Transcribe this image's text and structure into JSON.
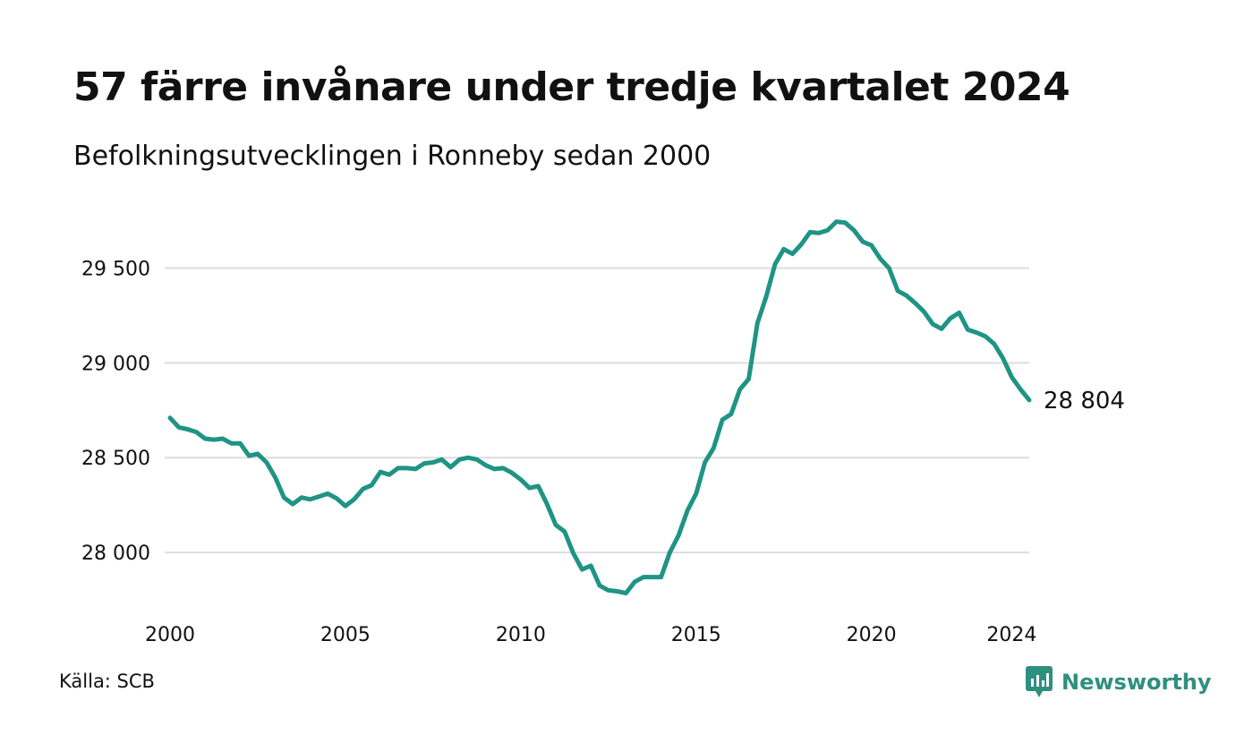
{
  "header": {
    "title": "57 färre invånare under tredje kvartalet 2024",
    "subtitle": "Befolkningsutvecklingen i Ronneby sedan 2000"
  },
  "footer": {
    "source": "Källa: SCB",
    "brand": "Newsworthy",
    "brand_icon": "newsworthy-logo-icon"
  },
  "colors": {
    "line": "#1f9484",
    "grid": "#dddddd",
    "brand": "#2f8f7f"
  },
  "chart_data": {
    "type": "line",
    "title": "57 färre invånare under tredje kvartalet 2024",
    "subtitle": "Befolkningsutvecklingen i Ronneby sedan 2000",
    "xlabel": "",
    "ylabel": "",
    "xlim": [
      2000,
      2024.5
    ],
    "ylim": [
      27750,
      29800
    ],
    "grid": "horizontal",
    "x_ticks": [
      2000,
      2005,
      2010,
      2015,
      2020,
      2024
    ],
    "x_tick_labels": [
      "2000",
      "2005",
      "2010",
      "2015",
      "2020",
      "2024"
    ],
    "y_ticks": [
      28000,
      28500,
      29000,
      29500
    ],
    "y_tick_labels": [
      "28 000",
      "28 500",
      "29 000",
      "29 500"
    ],
    "end_label": "28 804",
    "series": [
      {
        "x": [
          2000.0,
          2000.25,
          2000.5,
          2000.75,
          2001.0,
          2001.25,
          2001.5,
          2001.75,
          2002.0,
          2002.25,
          2002.5,
          2002.75,
          2003.0,
          2003.25,
          2003.5,
          2003.75,
          2004.0,
          2004.25,
          2004.5,
          2004.75,
          2005.0,
          2005.25,
          2005.5,
          2005.75,
          2006.0,
          2006.25,
          2006.5,
          2006.75,
          2007.0,
          2007.25,
          2007.5,
          2007.75,
          2008.0,
          2008.25,
          2008.5,
          2008.75,
          2009.0,
          2009.25,
          2009.5,
          2009.75,
          2010.0,
          2010.25,
          2010.5,
          2010.75,
          2011.0,
          2011.25,
          2011.5,
          2011.75,
          2012.0,
          2012.25,
          2012.5,
          2012.75,
          2013.0,
          2013.25,
          2013.5,
          2013.75,
          2014.0,
          2014.25,
          2014.5,
          2014.75,
          2015.0,
          2015.25,
          2015.5,
          2015.75,
          2016.0,
          2016.25,
          2016.5,
          2016.75,
          2017.0,
          2017.25,
          2017.5,
          2017.75,
          2018.0,
          2018.25,
          2018.5,
          2018.75,
          2019.0,
          2019.25,
          2019.5,
          2019.75,
          2020.0,
          2020.25,
          2020.5,
          2020.75,
          2021.0,
          2021.25,
          2021.5,
          2021.75,
          2022.0,
          2022.25,
          2022.5,
          2022.75,
          2023.0,
          2023.25,
          2023.5,
          2023.75,
          2024.0,
          2024.25,
          2024.5
        ],
        "values": [
          28710,
          28660,
          28650,
          28635,
          28600,
          28595,
          28600,
          28575,
          28575,
          28510,
          28520,
          28475,
          28395,
          28290,
          28255,
          28290,
          28280,
          28295,
          28310,
          28285,
          28245,
          28280,
          28335,
          28355,
          28425,
          28410,
          28445,
          28445,
          28440,
          28470,
          28475,
          28490,
          28450,
          28490,
          28500,
          28490,
          28460,
          28440,
          28445,
          28420,
          28385,
          28340,
          28350,
          28255,
          28145,
          28110,
          27995,
          27910,
          27930,
          27825,
          27800,
          27795,
          27785,
          27845,
          27870,
          27870,
          27870,
          28000,
          28090,
          28220,
          28310,
          28475,
          28550,
          28700,
          28730,
          28860,
          28915,
          29210,
          29350,
          29520,
          29600,
          29575,
          29625,
          29690,
          29685,
          29700,
          29745,
          29740,
          29700,
          29640,
          29620,
          29550,
          29500,
          29380,
          29355,
          29315,
          29270,
          29205,
          29180,
          29235,
          29265,
          29175,
          29160,
          29140,
          29100,
          29025,
          28925,
          28861,
          28804
        ]
      }
    ]
  }
}
